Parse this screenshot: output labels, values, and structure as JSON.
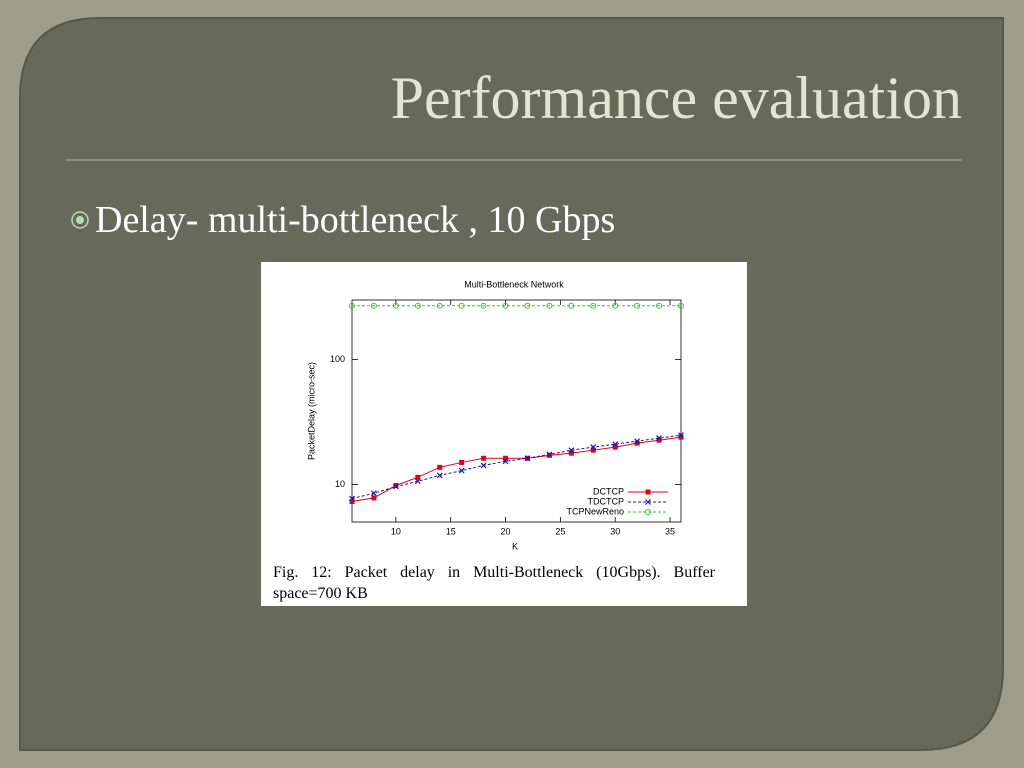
{
  "slide": {
    "title": "Performance evaluation",
    "bullet": "Delay- multi-bottleneck , 10 Gbps"
  },
  "chart_data": {
    "type": "line",
    "title": "Multi-Bottleneck Network",
    "x_label": "K",
    "y_label": "PacketDelay (micro-sec)",
    "caption": "Fig. 12: Packet delay in Multi-Bottleneck (10Gbps). Buffer space=700 KB",
    "x": [
      6,
      8,
      10,
      12,
      14,
      16,
      18,
      20,
      22,
      24,
      26,
      28,
      30,
      32,
      34,
      36
    ],
    "xlim": [
      6,
      36
    ],
    "xticks": [
      10,
      15,
      20,
      25,
      30,
      35
    ],
    "ylim": [
      5,
      300
    ],
    "yticks": [
      10,
      100
    ],
    "y_scale": "log",
    "grid": false,
    "legend": "bottom-right",
    "series": [
      {
        "name": "DCTCP",
        "color": "#e0001b",
        "marker": "square",
        "dashed": false,
        "values": [
          7.3,
          7.8,
          9.8,
          11.4,
          13.7,
          15,
          16.2,
          16.2,
          16.2,
          17.1,
          17.8,
          18.8,
          19.9,
          21.4,
          22.6,
          23.9
        ]
      },
      {
        "name": "TDCTCP",
        "color": "#1c1ca8",
        "marker": "cross",
        "dashed": true,
        "values": [
          7.7,
          8.5,
          9.6,
          10.6,
          11.8,
          12.9,
          14.2,
          15.3,
          16.2,
          17.4,
          18.8,
          19.9,
          21,
          22.2,
          23.5,
          24.8
        ]
      },
      {
        "name": "TCPNewReno",
        "color": "#33cc33",
        "marker": "circle",
        "dashed": true,
        "values": [
          270,
          270,
          270,
          270,
          270,
          270,
          270,
          270,
          270,
          270,
          270,
          270,
          270,
          270,
          270,
          270
        ]
      }
    ]
  }
}
